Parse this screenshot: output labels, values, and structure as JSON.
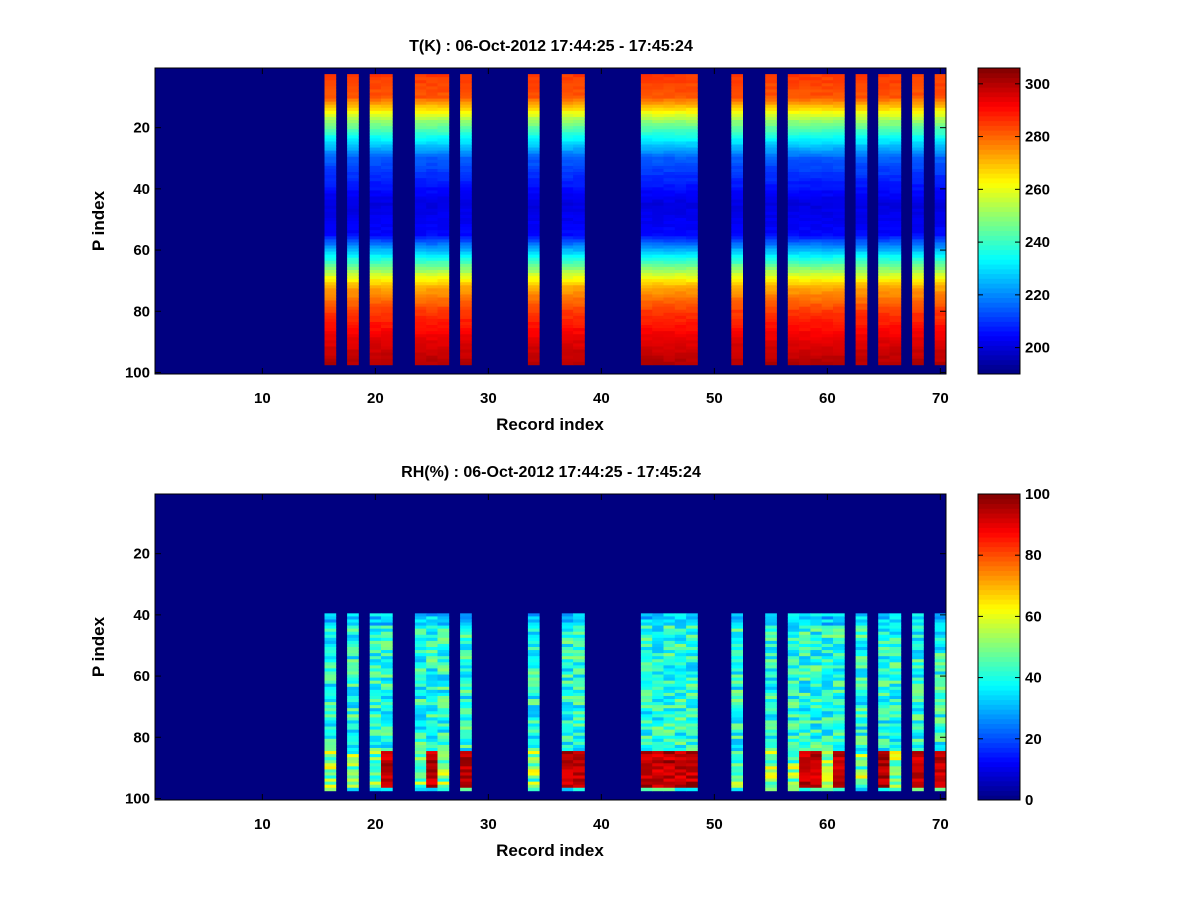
{
  "chart_data": [
    {
      "type": "heatmap",
      "title": "T(K) : 06-Oct-2012 17:44:25 - 17:45:24",
      "xlabel": "Record index",
      "ylabel": "P index",
      "xlim": [
        0.5,
        70.5
      ],
      "ylim": [
        0.5,
        100.5
      ],
      "x_ticks": [
        10,
        20,
        30,
        40,
        50,
        60,
        70
      ],
      "y_ticks": [
        20,
        40,
        60,
        80,
        100
      ],
      "colorbar": {
        "range": [
          190,
          306
        ],
        "ticks": [
          200,
          220,
          240,
          260,
          280,
          300
        ]
      },
      "background_value": 190,
      "valid_rows": [
        3,
        97
      ],
      "records": [
        16,
        18,
        20,
        21,
        24,
        25,
        26,
        28,
        34,
        37,
        38,
        44,
        45,
        46,
        47,
        48,
        52,
        55,
        57,
        58,
        59,
        60,
        61,
        63,
        65,
        66,
        68,
        70
      ],
      "profile_description": "Temperature ~285 K near top, minimum ~200 K around P index 45, rising to ~300 K near P index 97"
    },
    {
      "type": "heatmap",
      "title": "RH(%) : 06-Oct-2012 17:44:25 - 17:45:24",
      "xlabel": "Record index",
      "ylabel": "P index",
      "xlim": [
        0.5,
        70.5
      ],
      "ylim": [
        0.5,
        100.5
      ],
      "x_ticks": [
        10,
        20,
        30,
        40,
        50,
        60,
        70
      ],
      "y_ticks": [
        20,
        40,
        60,
        80,
        100
      ],
      "colorbar": {
        "range": [
          0,
          100
        ],
        "ticks": [
          0,
          20,
          40,
          60,
          80,
          100
        ]
      },
      "background_value": 0,
      "valid_rows": [
        40,
        97
      ],
      "records": [
        16,
        18,
        20,
        21,
        24,
        25,
        26,
        28,
        34,
        37,
        38,
        44,
        45,
        46,
        47,
        48,
        52,
        55,
        57,
        58,
        59,
        60,
        61,
        63,
        65,
        66,
        68,
        70
      ],
      "saturated_near_surface": [
        21,
        25,
        28,
        37,
        38,
        44,
        45,
        46,
        47,
        48,
        58,
        59,
        61,
        65,
        68,
        70
      ],
      "profile_description": "RH ~30-45% between P index 40 and 85, near 100% in lowest levels for many records"
    }
  ]
}
